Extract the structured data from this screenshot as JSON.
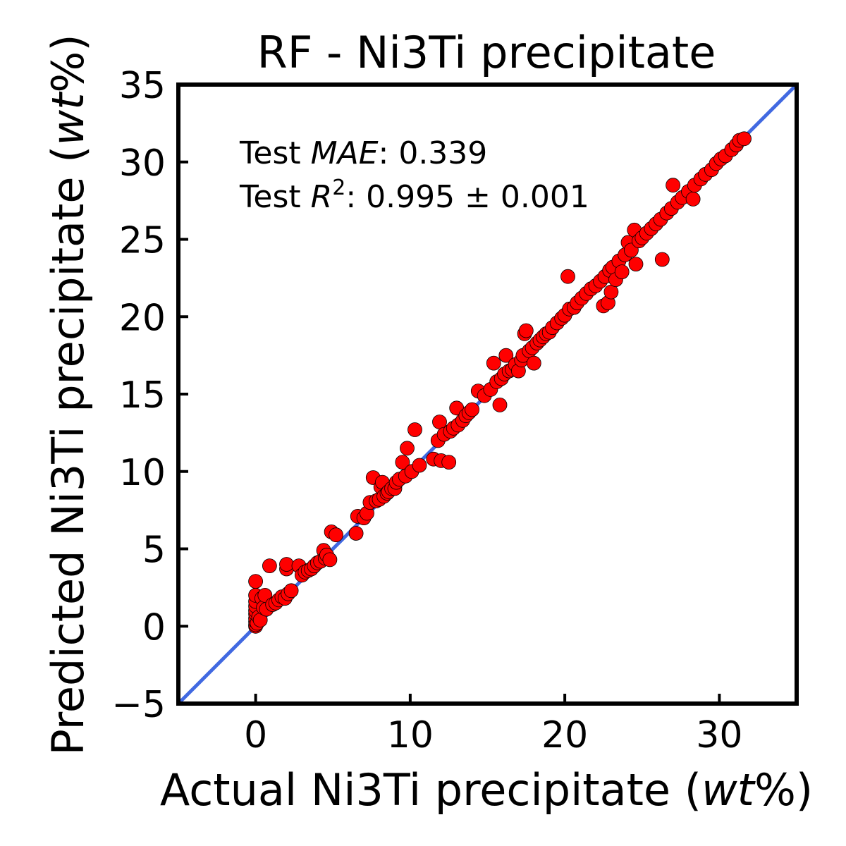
{
  "chart_data": {
    "type": "scatter",
    "title": "RF - Ni3Ti precipitate",
    "xlabel": {
      "pre": "Actual Ni3Ti precipitate (",
      "unit": "wt",
      "post": "%)"
    },
    "ylabel": {
      "pre": "Predicted Ni3Ti precipitate (",
      "unit": "wt",
      "post": "%)"
    },
    "xlim": [
      -5,
      35
    ],
    "ylim": [
      -5,
      35
    ],
    "xticks": [
      0,
      10,
      20,
      30
    ],
    "yticks": [
      -5,
      0,
      5,
      10,
      15,
      20,
      25,
      30,
      35
    ],
    "annotations": {
      "mae_prefix": "Test ",
      "mae_symbol": "MAE",
      "mae_value": ": 0.339",
      "r2_prefix": "Test ",
      "r2_symbol": "R",
      "r2_sup": "2",
      "r2_value": ": 0.995 ± 0.001"
    },
    "colors": {
      "points": "#ff0000",
      "point_edge": "#000000",
      "identity_line": "#4169e1"
    },
    "identity_line": {
      "x": [
        -5,
        35
      ],
      "y": [
        -5,
        35
      ]
    },
    "points": [
      [
        0.0,
        0.0
      ],
      [
        0.0,
        0.1
      ],
      [
        0.0,
        0.3
      ],
      [
        0.0,
        0.5
      ],
      [
        0.0,
        0.8
      ],
      [
        0.0,
        1.0
      ],
      [
        0.0,
        1.3
      ],
      [
        0.0,
        1.6
      ],
      [
        0.0,
        2.0
      ],
      [
        0.0,
        2.9
      ],
      [
        0.1,
        0.2
      ],
      [
        0.2,
        0.6
      ],
      [
        0.3,
        0.4
      ],
      [
        0.4,
        1.8
      ],
      [
        0.5,
        1.2
      ],
      [
        0.6,
        2.0
      ],
      [
        0.7,
        1.1
      ],
      [
        0.9,
        3.9
      ],
      [
        1.1,
        1.4
      ],
      [
        1.3,
        1.5
      ],
      [
        1.5,
        1.7
      ],
      [
        1.7,
        1.9
      ],
      [
        1.9,
        1.8
      ],
      [
        2.0,
        3.7
      ],
      [
        2.0,
        4.0
      ],
      [
        2.1,
        2.1
      ],
      [
        2.3,
        2.3
      ],
      [
        2.8,
        3.9
      ],
      [
        3.0,
        3.3
      ],
      [
        3.2,
        3.5
      ],
      [
        3.4,
        3.6
      ],
      [
        3.6,
        3.7
      ],
      [
        3.8,
        3.9
      ],
      [
        4.0,
        4.1
      ],
      [
        4.2,
        4.2
      ],
      [
        4.4,
        4.9
      ],
      [
        4.5,
        4.4
      ],
      [
        4.6,
        4.6
      ],
      [
        4.8,
        4.3
      ],
      [
        4.9,
        6.1
      ],
      [
        5.2,
        5.9
      ],
      [
        6.5,
        6.0
      ],
      [
        6.6,
        7.1
      ],
      [
        7.0,
        7.0
      ],
      [
        7.2,
        7.3
      ],
      [
        7.4,
        8.0
      ],
      [
        7.6,
        9.6
      ],
      [
        7.8,
        8.1
      ],
      [
        8.0,
        8.2
      ],
      [
        8.1,
        9.0
      ],
      [
        8.2,
        9.3
      ],
      [
        8.3,
        8.4
      ],
      [
        8.5,
        8.6
      ],
      [
        8.6,
        8.7
      ],
      [
        8.8,
        8.9
      ],
      [
        9.0,
        8.9
      ],
      [
        9.1,
        9.3
      ],
      [
        9.3,
        9.5
      ],
      [
        9.5,
        10.6
      ],
      [
        9.7,
        9.7
      ],
      [
        9.8,
        11.5
      ],
      [
        10.1,
        10.0
      ],
      [
        10.3,
        12.7
      ],
      [
        10.6,
        10.4
      ],
      [
        11.5,
        10.8
      ],
      [
        11.8,
        12.0
      ],
      [
        11.9,
        13.2
      ],
      [
        12.0,
        10.7
      ],
      [
        12.2,
        12.4
      ],
      [
        12.5,
        10.6
      ],
      [
        12.6,
        12.6
      ],
      [
        12.8,
        12.8
      ],
      [
        13.0,
        14.1
      ],
      [
        13.1,
        13.0
      ],
      [
        13.4,
        13.3
      ],
      [
        13.6,
        13.6
      ],
      [
        13.8,
        13.8
      ],
      [
        14.0,
        14.0
      ],
      [
        14.4,
        15.2
      ],
      [
        14.8,
        14.9
      ],
      [
        15.2,
        15.3
      ],
      [
        15.4,
        17.0
      ],
      [
        15.6,
        15.8
      ],
      [
        15.8,
        14.3
      ],
      [
        15.9,
        16.0
      ],
      [
        16.1,
        16.3
      ],
      [
        16.2,
        17.5
      ],
      [
        16.4,
        16.5
      ],
      [
        16.6,
        16.6
      ],
      [
        16.8,
        16.9
      ],
      [
        17.0,
        16.5
      ],
      [
        17.2,
        17.2
      ],
      [
        17.3,
        17.5
      ],
      [
        17.4,
        18.9
      ],
      [
        17.5,
        19.1
      ],
      [
        17.7,
        17.8
      ],
      [
        17.9,
        18.0
      ],
      [
        18.0,
        17.0
      ],
      [
        18.2,
        18.3
      ],
      [
        18.4,
        18.5
      ],
      [
        18.6,
        18.7
      ],
      [
        18.8,
        18.9
      ],
      [
        19.0,
        19.0
      ],
      [
        19.2,
        19.3
      ],
      [
        19.5,
        19.6
      ],
      [
        19.8,
        19.9
      ],
      [
        20.0,
        20.1
      ],
      [
        20.2,
        22.6
      ],
      [
        20.3,
        20.5
      ],
      [
        20.6,
        20.6
      ],
      [
        20.8,
        20.9
      ],
      [
        21.1,
        21.2
      ],
      [
        21.4,
        21.5
      ],
      [
        21.7,
        21.8
      ],
      [
        22.0,
        22.0
      ],
      [
        22.3,
        22.3
      ],
      [
        22.5,
        20.7
      ],
      [
        22.6,
        22.6
      ],
      [
        22.8,
        20.9
      ],
      [
        22.9,
        23.0
      ],
      [
        23.0,
        21.6
      ],
      [
        23.1,
        23.2
      ],
      [
        23.3,
        22.4
      ],
      [
        23.5,
        23.6
      ],
      [
        23.7,
        22.9
      ],
      [
        23.9,
        24.0
      ],
      [
        24.1,
        24.8
      ],
      [
        24.3,
        24.3
      ],
      [
        24.5,
        25.6
      ],
      [
        24.6,
        23.4
      ],
      [
        24.8,
        24.9
      ],
      [
        25.0,
        25.1
      ],
      [
        25.3,
        25.4
      ],
      [
        25.6,
        25.7
      ],
      [
        25.9,
        26.0
      ],
      [
        26.2,
        26.3
      ],
      [
        26.3,
        23.7
      ],
      [
        26.6,
        26.7
      ],
      [
        26.9,
        27.0
      ],
      [
        27.0,
        28.5
      ],
      [
        27.3,
        27.4
      ],
      [
        27.6,
        27.7
      ],
      [
        28.0,
        28.1
      ],
      [
        28.3,
        27.6
      ],
      [
        28.4,
        28.5
      ],
      [
        28.8,
        28.9
      ],
      [
        29.1,
        29.2
      ],
      [
        29.5,
        29.5
      ],
      [
        29.8,
        29.9
      ],
      [
        30.1,
        30.2
      ],
      [
        30.4,
        30.4
      ],
      [
        30.8,
        30.8
      ],
      [
        31.1,
        31.1
      ],
      [
        31.3,
        31.4
      ],
      [
        31.6,
        31.5
      ]
    ]
  }
}
